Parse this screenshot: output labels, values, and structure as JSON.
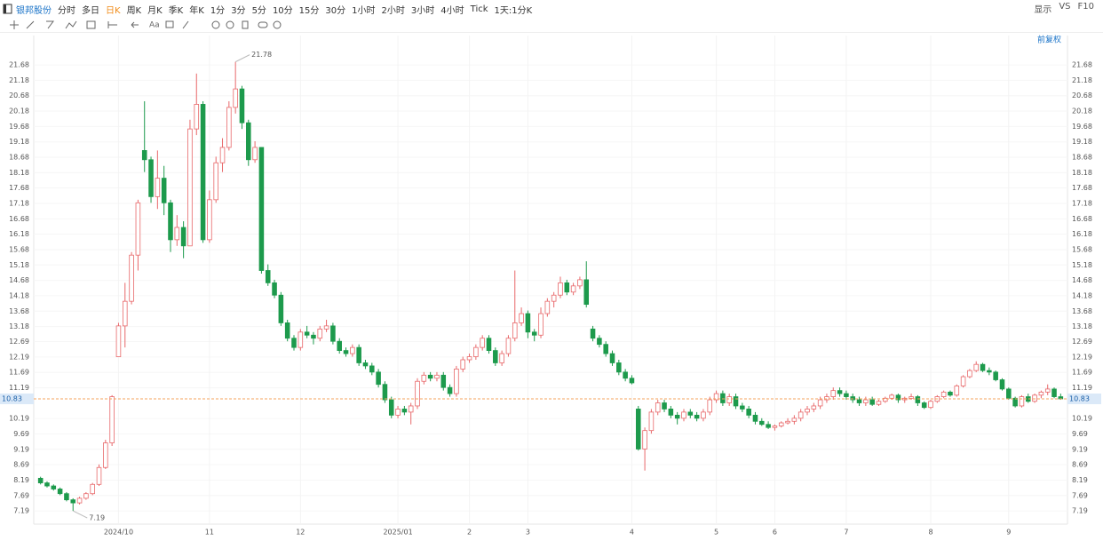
{
  "toolbar": {
    "stock": "银邦股份",
    "periods": [
      "分时",
      "多日",
      "日K",
      "周K",
      "月K",
      "季K",
      "年K",
      "1分",
      "3分",
      "5分",
      "10分",
      "15分",
      "30分",
      "1小时",
      "2小时",
      "3小时",
      "4小时",
      "Tick",
      "1天:1分K"
    ],
    "selected": "日K",
    "right": [
      "显示",
      "VS",
      "F10"
    ],
    "text_tool": "Aa"
  },
  "chart_data": {
    "type": "candlestick",
    "adjust_label": "前复权",
    "up_color": "#e8686a",
    "down_color": "#1d9a4c",
    "last_color": "#f5a35c",
    "grid": true,
    "ylim": [
      6.76,
      22.0
    ],
    "yticks": [
      7.19,
      7.69,
      8.19,
      8.69,
      9.19,
      9.69,
      10.19,
      11.19,
      11.69,
      12.19,
      12.69,
      13.18,
      13.68,
      14.18,
      14.68,
      15.18,
      15.68,
      16.18,
      16.68,
      17.18,
      17.68,
      18.18,
      18.68,
      19.18,
      19.68,
      20.18,
      20.68,
      21.18,
      21.68
    ],
    "last_price": 10.83,
    "high_annotation": 21.78,
    "low_annotation": 7.19,
    "categories": [
      null,
      null,
      null,
      null,
      null,
      null,
      null,
      null,
      null,
      null,
      null,
      null,
      "2024/10",
      null,
      null,
      null,
      null,
      null,
      null,
      null,
      null,
      null,
      null,
      null,
      null,
      null,
      "11",
      null,
      null,
      null,
      null,
      null,
      null,
      null,
      null,
      null,
      null,
      null,
      null,
      null,
      "12",
      null,
      null,
      null,
      null,
      null,
      null,
      null,
      null,
      null,
      null,
      null,
      null,
      null,
      null,
      "2025/01",
      null,
      null,
      null,
      null,
      null,
      null,
      null,
      null,
      null,
      null,
      "2",
      null,
      null,
      null,
      null,
      null,
      null,
      null,
      null,
      "3",
      null,
      null,
      null,
      null,
      null,
      null,
      null,
      null,
      null,
      null,
      null,
      null,
      null,
      null,
      null,
      "4",
      null,
      null,
      null,
      null,
      null,
      null,
      null,
      null,
      null,
      null,
      null,
      null,
      "5",
      null,
      null,
      null,
      null,
      null,
      null,
      null,
      null,
      "6",
      null,
      null,
      null,
      null,
      null,
      null,
      null,
      null,
      null,
      null,
      "7",
      null,
      null,
      null,
      null,
      null,
      null,
      null,
      null,
      null,
      null,
      null,
      null,
      "8",
      null,
      null,
      null,
      null,
      null,
      null,
      null,
      null,
      null,
      null,
      null,
      "9",
      null,
      null,
      null,
      null,
      null,
      null,
      null,
      null
    ],
    "ohlc": [
      [
        8.25,
        8.3,
        8.05,
        8.1
      ],
      [
        8.1,
        8.15,
        7.95,
        8.0
      ],
      [
        8.0,
        8.05,
        7.85,
        7.9
      ],
      [
        7.9,
        7.95,
        7.7,
        7.75
      ],
      [
        7.75,
        7.8,
        7.5,
        7.55
      ],
      [
        7.55,
        7.6,
        7.19,
        7.45
      ],
      [
        7.45,
        7.65,
        7.4,
        7.6
      ],
      [
        7.6,
        7.8,
        7.55,
        7.75
      ],
      [
        7.75,
        8.1,
        7.7,
        8.05
      ],
      [
        8.05,
        8.7,
        8.0,
        8.6
      ],
      [
        8.6,
        9.5,
        8.55,
        9.4
      ],
      [
        9.4,
        10.95,
        9.3,
        10.9
      ],
      [
        12.2,
        13.3,
        12.2,
        13.2
      ],
      [
        13.2,
        14.6,
        12.5,
        14.0
      ],
      [
        14.0,
        15.6,
        13.9,
        15.5
      ],
      [
        15.5,
        17.3,
        15.0,
        17.2
      ],
      [
        18.9,
        20.5,
        18.2,
        18.6
      ],
      [
        18.6,
        18.7,
        17.2,
        17.4
      ],
      [
        17.4,
        18.9,
        17.0,
        18.0
      ],
      [
        18.0,
        18.4,
        16.8,
        17.2
      ],
      [
        17.2,
        17.3,
        15.6,
        16.0
      ],
      [
        16.0,
        16.8,
        15.8,
        16.4
      ],
      [
        16.4,
        16.6,
        15.4,
        15.8
      ],
      [
        15.8,
        19.9,
        15.8,
        19.6
      ],
      [
        19.6,
        21.4,
        19.4,
        20.4
      ],
      [
        20.4,
        20.5,
        15.9,
        16.0
      ],
      [
        16.0,
        17.6,
        15.9,
        17.3
      ],
      [
        17.3,
        18.7,
        17.2,
        18.5
      ],
      [
        18.5,
        19.3,
        18.2,
        19.0
      ],
      [
        19.0,
        20.5,
        18.9,
        20.3
      ],
      [
        20.3,
        21.78,
        20.1,
        20.9
      ],
      [
        20.9,
        21.0,
        19.6,
        19.8
      ],
      [
        19.8,
        19.9,
        18.4,
        18.6
      ],
      [
        18.6,
        19.2,
        18.5,
        19.0
      ],
      [
        19.0,
        19.0,
        14.9,
        15.0
      ],
      [
        15.0,
        15.2,
        14.5,
        14.6
      ],
      [
        14.6,
        14.7,
        14.1,
        14.2
      ],
      [
        14.2,
        14.3,
        13.2,
        13.3
      ],
      [
        13.3,
        13.4,
        12.7,
        12.8
      ],
      [
        12.8,
        12.9,
        12.4,
        12.5
      ],
      [
        12.5,
        13.1,
        12.4,
        13.0
      ],
      [
        13.0,
        13.2,
        12.8,
        12.9
      ],
      [
        12.9,
        13.0,
        12.6,
        12.8
      ],
      [
        12.8,
        13.2,
        12.7,
        13.1
      ],
      [
        13.1,
        13.4,
        13.0,
        13.2
      ],
      [
        13.2,
        13.3,
        12.6,
        12.7
      ],
      [
        12.7,
        12.8,
        12.3,
        12.4
      ],
      [
        12.4,
        12.5,
        12.2,
        12.3
      ],
      [
        12.3,
        12.6,
        12.2,
        12.5
      ],
      [
        12.5,
        12.6,
        11.9,
        12.0
      ],
      [
        12.0,
        12.1,
        11.8,
        11.9
      ],
      [
        11.9,
        12.0,
        11.6,
        11.7
      ],
      [
        11.7,
        11.8,
        11.2,
        11.3
      ],
      [
        11.3,
        11.4,
        10.7,
        10.8
      ],
      [
        10.8,
        10.9,
        10.2,
        10.3
      ],
      [
        10.3,
        10.6,
        10.2,
        10.5
      ],
      [
        10.5,
        10.6,
        10.3,
        10.4
      ],
      [
        10.4,
        10.7,
        10.0,
        10.6
      ],
      [
        10.6,
        11.5,
        10.5,
        11.4
      ],
      [
        11.4,
        11.7,
        11.3,
        11.6
      ],
      [
        11.6,
        11.7,
        11.4,
        11.5
      ],
      [
        11.5,
        11.7,
        11.4,
        11.6
      ],
      [
        11.6,
        11.7,
        11.1,
        11.2
      ],
      [
        11.2,
        11.3,
        10.9,
        11.0
      ],
      [
        11.0,
        11.9,
        10.9,
        11.8
      ],
      [
        11.8,
        12.2,
        11.7,
        12.1
      ],
      [
        12.1,
        12.3,
        12.0,
        12.2
      ],
      [
        12.2,
        12.6,
        12.1,
        12.5
      ],
      [
        12.5,
        12.9,
        12.4,
        12.8
      ],
      [
        12.8,
        12.9,
        12.3,
        12.4
      ],
      [
        12.4,
        12.5,
        11.9,
        12.0
      ],
      [
        12.0,
        12.4,
        11.9,
        12.3
      ],
      [
        12.3,
        12.9,
        12.2,
        12.8
      ],
      [
        12.8,
        15.0,
        12.7,
        13.3
      ],
      [
        13.3,
        13.8,
        13.2,
        13.6
      ],
      [
        13.6,
        13.7,
        12.8,
        13.0
      ],
      [
        13.0,
        13.1,
        12.7,
        12.9
      ],
      [
        12.9,
        13.8,
        12.8,
        13.6
      ],
      [
        13.6,
        14.1,
        13.5,
        14.0
      ],
      [
        14.0,
        14.3,
        13.8,
        14.2
      ],
      [
        14.2,
        14.8,
        14.1,
        14.6
      ],
      [
        14.6,
        14.7,
        14.2,
        14.3
      ],
      [
        14.3,
        14.6,
        14.2,
        14.5
      ],
      [
        14.5,
        14.8,
        14.4,
        14.7
      ],
      [
        14.7,
        15.3,
        13.8,
        13.9
      ],
      [
        13.1,
        13.2,
        12.7,
        12.8
      ],
      [
        12.8,
        12.9,
        12.5,
        12.6
      ],
      [
        12.6,
        12.7,
        12.2,
        12.3
      ],
      [
        12.3,
        12.4,
        11.9,
        12.0
      ],
      [
        12.0,
        12.1,
        11.6,
        11.7
      ],
      [
        11.7,
        11.8,
        11.4,
        11.5
      ],
      [
        11.5,
        11.6,
        11.3,
        11.35
      ],
      [
        10.5,
        10.6,
        9.15,
        9.2
      ],
      [
        9.2,
        9.9,
        8.5,
        9.8
      ],
      [
        9.8,
        10.5,
        9.7,
        10.4
      ],
      [
        10.4,
        10.8,
        10.3,
        10.7
      ],
      [
        10.7,
        10.8,
        10.4,
        10.5
      ],
      [
        10.5,
        10.6,
        10.2,
        10.3
      ],
      [
        10.3,
        10.4,
        10.0,
        10.2
      ],
      [
        10.2,
        10.5,
        10.1,
        10.4
      ],
      [
        10.4,
        10.5,
        10.2,
        10.3
      ],
      [
        10.3,
        10.4,
        10.1,
        10.2
      ],
      [
        10.2,
        10.5,
        10.1,
        10.4
      ],
      [
        10.4,
        10.9,
        10.3,
        10.8
      ],
      [
        10.8,
        11.1,
        10.7,
        11.0
      ],
      [
        11.0,
        11.1,
        10.6,
        10.7
      ],
      [
        10.7,
        11.0,
        10.6,
        10.9
      ],
      [
        10.9,
        11.0,
        10.5,
        10.6
      ],
      [
        10.6,
        10.7,
        10.4,
        10.5
      ],
      [
        10.5,
        10.6,
        10.2,
        10.3
      ],
      [
        10.3,
        10.4,
        10.0,
        10.1
      ],
      [
        10.1,
        10.2,
        9.95,
        10.0
      ],
      [
        10.0,
        10.1,
        9.85,
        9.9
      ],
      [
        9.9,
        10.0,
        9.8,
        9.95
      ],
      [
        9.95,
        10.1,
        9.9,
        10.05
      ],
      [
        10.05,
        10.2,
        10.0,
        10.1
      ],
      [
        10.1,
        10.3,
        10.0,
        10.2
      ],
      [
        10.2,
        10.5,
        10.1,
        10.4
      ],
      [
        10.4,
        10.6,
        10.3,
        10.5
      ],
      [
        10.5,
        10.7,
        10.4,
        10.6
      ],
      [
        10.6,
        10.9,
        10.5,
        10.8
      ],
      [
        10.8,
        11.0,
        10.7,
        10.9
      ],
      [
        10.9,
        11.2,
        10.8,
        11.1
      ],
      [
        11.1,
        11.2,
        10.9,
        11.0
      ],
      [
        11.0,
        11.1,
        10.8,
        10.9
      ],
      [
        10.9,
        11.0,
        10.7,
        10.8
      ],
      [
        10.8,
        10.9,
        10.6,
        10.7
      ],
      [
        10.7,
        10.9,
        10.6,
        10.8
      ],
      [
        10.8,
        10.9,
        10.6,
        10.65
      ],
      [
        10.65,
        10.8,
        10.6,
        10.75
      ],
      [
        10.75,
        10.9,
        10.7,
        10.85
      ],
      [
        10.85,
        11.0,
        10.8,
        10.95
      ],
      [
        10.95,
        11.0,
        10.7,
        10.8
      ],
      [
        10.8,
        10.9,
        10.7,
        10.85
      ],
      [
        10.85,
        11.0,
        10.8,
        10.9
      ],
      [
        10.9,
        10.95,
        10.6,
        10.7
      ],
      [
        10.7,
        10.75,
        10.5,
        10.55
      ],
      [
        10.55,
        10.8,
        10.5,
        10.75
      ],
      [
        10.75,
        10.95,
        10.7,
        10.9
      ],
      [
        10.9,
        11.1,
        10.85,
        11.05
      ],
      [
        11.05,
        11.1,
        10.9,
        10.95
      ],
      [
        10.95,
        11.3,
        10.9,
        11.25
      ],
      [
        11.25,
        11.6,
        11.2,
        11.55
      ],
      [
        11.55,
        11.8,
        11.5,
        11.75
      ],
      [
        11.75,
        12.05,
        11.7,
        11.95
      ],
      [
        11.95,
        12.0,
        11.7,
        11.75
      ],
      [
        11.75,
        11.85,
        11.6,
        11.7
      ],
      [
        11.7,
        11.75,
        11.4,
        11.45
      ],
      [
        11.45,
        11.5,
        11.1,
        11.15
      ],
      [
        11.15,
        11.2,
        10.8,
        10.85
      ],
      [
        10.85,
        10.9,
        10.55,
        10.6
      ],
      [
        10.6,
        10.95,
        10.55,
        10.9
      ],
      [
        10.9,
        11.0,
        10.7,
        10.75
      ],
      [
        10.75,
        11.0,
        10.7,
        10.95
      ],
      [
        10.95,
        11.1,
        10.85,
        11.05
      ],
      [
        11.05,
        11.3,
        10.95,
        11.15
      ],
      [
        11.15,
        11.2,
        10.85,
        10.9
      ],
      [
        10.9,
        11.0,
        10.8,
        10.83
      ]
    ]
  }
}
